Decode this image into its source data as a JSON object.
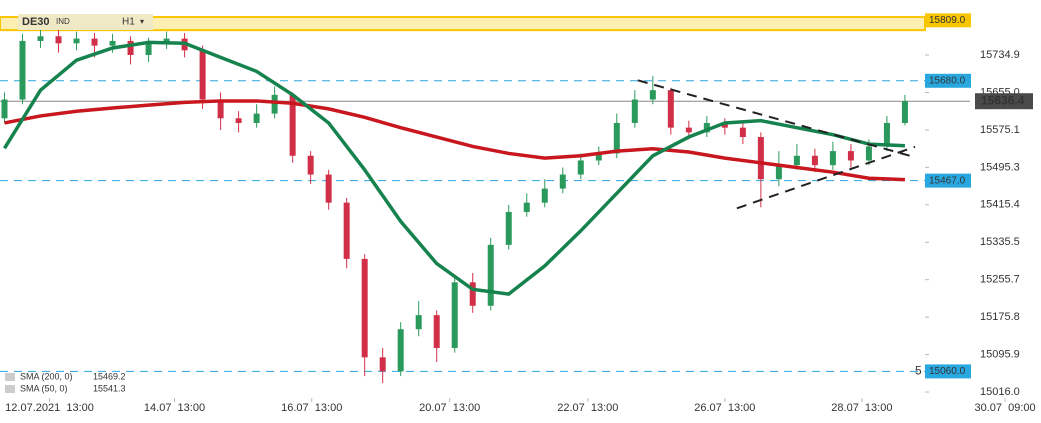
{
  "toolbar": {
    "symbol": "DE30",
    "market": "IND",
    "timeframe": "H1"
  },
  "chart_data": {
    "type": "candlestick",
    "up_color": "#2a9a5c",
    "down_color": "#d12f47",
    "xlim": [
      -0.25,
      57.5
    ],
    "ylim": [
      14999,
      15831
    ],
    "xticks": [
      {
        "value": 2.5,
        "label": "12.07.2021  13:00"
      },
      {
        "value": 9.44,
        "label": "14.07  13:00"
      },
      {
        "value": 17.06,
        "label": "16.07  13:00"
      },
      {
        "value": 24.72,
        "label": "20.07  13:00"
      },
      {
        "value": 32.39,
        "label": "22.07  13:00"
      },
      {
        "value": 40,
        "label": "26.07  13:00"
      },
      {
        "value": 47.61,
        "label": "28.07  13:00"
      },
      {
        "value": 55.56,
        "label": "30.07  09:00"
      }
    ],
    "yticks": [
      {
        "value": 15016,
        "label": "15016.0"
      },
      15095.9,
      15175.8,
      15255.7,
      15335.5,
      15415.4,
      15495.3,
      15575.1,
      {
        "value": 15655,
        "label": "15655.0"
      },
      15734.9
    ],
    "candles": {
      "x": [
        0,
        1,
        2,
        3,
        4,
        5,
        6,
        7,
        8,
        9,
        10,
        11,
        12,
        13,
        14,
        15,
        16,
        17,
        18,
        19,
        20,
        21,
        22,
        23,
        24,
        25,
        26,
        27,
        28,
        29,
        30,
        31,
        32,
        33,
        34,
        35,
        36,
        37,
        38,
        39,
        40,
        41,
        42,
        43,
        44,
        45,
        46,
        47,
        48,
        49,
        50
      ],
      "open": [
        15600,
        15640,
        15765,
        15775,
        15760,
        15770,
        15755,
        15765,
        15735,
        15760,
        15770,
        15745,
        15640,
        15600,
        15590,
        15610,
        15650,
        15520,
        15480,
        15420,
        15300,
        15090,
        15060,
        15150,
        15180,
        15110,
        15250,
        15200,
        15330,
        15400,
        15420,
        15450,
        15480,
        15510,
        15525,
        15590,
        15640,
        15660,
        15580,
        15570,
        15590,
        15580,
        15560,
        15470,
        15500,
        15520,
        15500,
        15530,
        15510,
        15540,
        15590
      ],
      "high": [
        15655,
        15780,
        15790,
        15790,
        15785,
        15782,
        15780,
        15775,
        15772,
        15785,
        15782,
        15755,
        15655,
        15615,
        15630,
        15668,
        15655,
        15530,
        15490,
        15430,
        15310,
        15110,
        15165,
        15210,
        15190,
        15265,
        15270,
        15345,
        15415,
        15440,
        15470,
        15495,
        15525,
        15540,
        15610,
        15660,
        15690,
        15665,
        15595,
        15605,
        15600,
        15592,
        15570,
        15530,
        15545,
        15535,
        15550,
        15545,
        15555,
        15605,
        15650
      ],
      "low": [
        15590,
        15630,
        15750,
        15740,
        15745,
        15730,
        15740,
        15715,
        15720,
        15748,
        15730,
        15620,
        15575,
        15570,
        15580,
        15600,
        15505,
        15460,
        15405,
        15280,
        15050,
        15035,
        15050,
        15135,
        15080,
        15100,
        15185,
        15190,
        15320,
        15390,
        15410,
        15440,
        15470,
        15500,
        15515,
        15580,
        15630,
        15565,
        15555,
        15560,
        15565,
        15545,
        15410,
        15455,
        15490,
        15485,
        15490,
        15495,
        15500,
        15530,
        15585
      ],
      "close": [
        15640,
        15765,
        15775,
        15760,
        15770,
        15755,
        15765,
        15735,
        15760,
        15770,
        15745,
        15640,
        15600,
        15590,
        15610,
        15650,
        15520,
        15480,
        15420,
        15300,
        15090,
        15060,
        15150,
        15180,
        15110,
        15250,
        15200,
        15330,
        15400,
        15420,
        15450,
        15480,
        15510,
        15525,
        15590,
        15640,
        15660,
        15580,
        15570,
        15590,
        15580,
        15560,
        15470,
        15500,
        15520,
        15500,
        15530,
        15510,
        15540,
        15590,
        15636.4
      ]
    },
    "series": [
      {
        "name": "SMA (200, 0)",
        "color": "#c8171e",
        "x": [
          0,
          2,
          4,
          6,
          8,
          10,
          12,
          14,
          16,
          18,
          20,
          22,
          24,
          26,
          28,
          30,
          32,
          34,
          36,
          38,
          40,
          42,
          44,
          46,
          48,
          50
        ],
        "values": [
          15590,
          15605,
          15615,
          15622,
          15628,
          15634,
          15637,
          15637,
          15632,
          15620,
          15602,
          15580,
          15560,
          15540,
          15525,
          15515,
          15520,
          15530,
          15535,
          15528,
          15515,
          15505,
          15495,
          15485,
          15472,
          15469.2
        ]
      },
      {
        "name": "SMA (50, 0)",
        "color": "#16834e",
        "x": [
          0,
          2,
          4,
          6,
          8,
          10,
          12,
          14,
          16,
          18,
          20,
          22,
          24,
          26,
          28,
          30,
          32,
          34,
          36,
          38,
          40,
          42,
          44,
          46,
          48,
          50
        ],
        "values": [
          15536,
          15660,
          15724,
          15750,
          15762,
          15760,
          15730,
          15700,
          15650,
          15590,
          15490,
          15380,
          15290,
          15235,
          15225,
          15285,
          15360,
          15440,
          15520,
          15560,
          15590,
          15595,
          15580,
          15565,
          15545,
          15541.3
        ]
      }
    ],
    "zone": {
      "from": 15788,
      "to": 15816,
      "color": "#f7c600",
      "level": {
        "value": 15809,
        "label": "15809.0"
      }
    },
    "levels": [
      {
        "value": 15680,
        "label": "15680.0"
      },
      {
        "value": 15467,
        "label": "15467.0"
      },
      {
        "value": 15060,
        "label": "15060.0"
      }
    ],
    "level_color": "#29a8e0",
    "level_badge": "5",
    "last_price": 15636.4,
    "trendlines": [
      {
        "x": [
          35.17,
          50.56
        ],
        "values": [
          15681,
          15517
        ]
      },
      {
        "x": [
          40.67,
          50.56
        ],
        "values": [
          15408,
          15539
        ]
      }
    ]
  }
}
